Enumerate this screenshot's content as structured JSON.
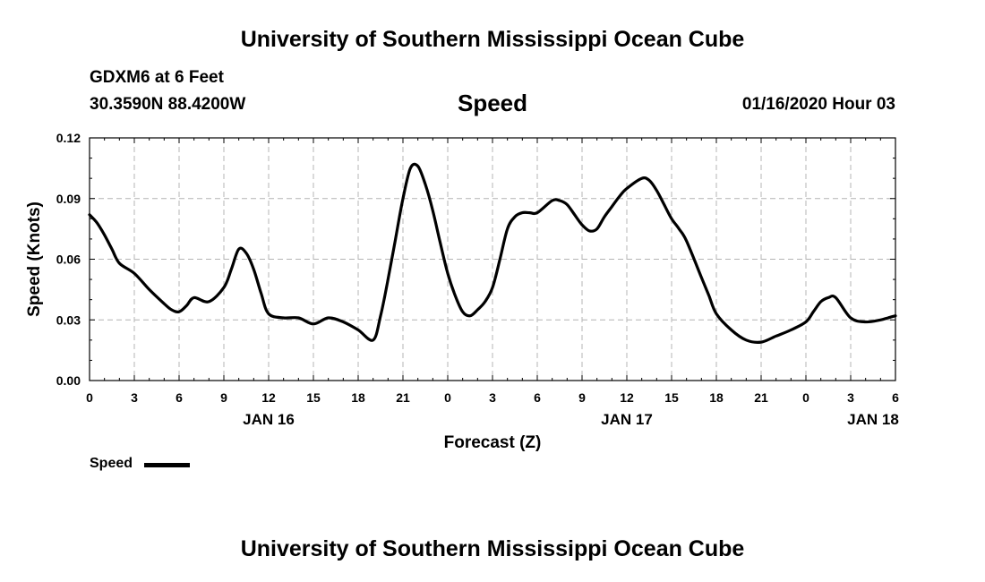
{
  "header": {
    "title": "University of Southern Mississippi Ocean Cube",
    "station": "GDXM6 at 6 Feet",
    "coords": "30.3590N 88.4200W",
    "chart_title": "Speed",
    "datetime": "01/16/2020 Hour 03"
  },
  "footer": {
    "title": "University of Southern Mississippi Ocean Cube"
  },
  "legend": {
    "label": "Speed"
  },
  "colors": {
    "line": "#000000",
    "grid": "#b4b4b4",
    "background": "#ffffff"
  },
  "chart_data": {
    "type": "line",
    "title": "Speed",
    "xlabel": "Forecast (Z)",
    "ylabel": "Speed (Knots)",
    "xlim": [
      0,
      54
    ],
    "ylim": [
      0,
      0.12
    ],
    "yticks": [
      0,
      0.03,
      0.06,
      0.09,
      0.12
    ],
    "ytick_labels": [
      "0.00",
      "0.03",
      "0.06",
      "0.09",
      "0.12"
    ],
    "xticks": [
      0,
      3,
      6,
      9,
      12,
      15,
      18,
      21,
      24,
      27,
      30,
      33,
      36,
      39,
      42,
      45,
      48,
      51,
      54
    ],
    "xtick_labels": [
      "0",
      "3",
      "6",
      "9",
      "12",
      "15",
      "18",
      "21",
      "0",
      "3",
      "6",
      "9",
      "12",
      "15",
      "18",
      "21",
      "0",
      "3",
      "6"
    ],
    "date_labels": [
      {
        "x": 12,
        "label": "JAN 16"
      },
      {
        "x": 36,
        "label": "JAN 17"
      },
      {
        "x": 52.5,
        "label": "JAN 18"
      }
    ],
    "grid": true,
    "series": [
      {
        "name": "Speed",
        "x": [
          0,
          0.5,
          1,
          1.5,
          2,
          3,
          4,
          5,
          5.5,
          6,
          6.5,
          7,
          8,
          9,
          9.5,
          10,
          10.5,
          11,
          11.5,
          12,
          13,
          14,
          15,
          16,
          17,
          18,
          19,
          19.5,
          20,
          20.5,
          21,
          21.5,
          22,
          22.5,
          23,
          23.5,
          24,
          24.5,
          25,
          25.5,
          26,
          26.5,
          27,
          27.5,
          28,
          28.5,
          29,
          29.5,
          30,
          31,
          31.5,
          32,
          32.5,
          33,
          33.5,
          34,
          34.5,
          35,
          35.5,
          36,
          37,
          37.5,
          38,
          38.5,
          39,
          39.5,
          40,
          41,
          41.5,
          42,
          43,
          44,
          45,
          46,
          47,
          48,
          48.5,
          49,
          49.5,
          50,
          51,
          52,
          53,
          53.5,
          54
        ],
        "values": [
          0.082,
          0.078,
          0.072,
          0.065,
          0.058,
          0.053,
          0.045,
          0.038,
          0.035,
          0.034,
          0.037,
          0.041,
          0.039,
          0.046,
          0.055,
          0.065,
          0.063,
          0.055,
          0.043,
          0.033,
          0.031,
          0.031,
          0.028,
          0.031,
          0.029,
          0.025,
          0.02,
          0.032,
          0.05,
          0.07,
          0.09,
          0.105,
          0.106,
          0.097,
          0.084,
          0.068,
          0.053,
          0.042,
          0.034,
          0.032,
          0.035,
          0.039,
          0.046,
          0.06,
          0.075,
          0.081,
          0.083,
          0.083,
          0.083,
          0.089,
          0.089,
          0.087,
          0.082,
          0.077,
          0.074,
          0.075,
          0.081,
          0.086,
          0.091,
          0.095,
          0.1,
          0.099,
          0.094,
          0.087,
          0.08,
          0.075,
          0.069,
          0.051,
          0.042,
          0.033,
          0.025,
          0.02,
          0.019,
          0.022,
          0.025,
          0.029,
          0.034,
          0.039,
          0.041,
          0.041,
          0.031,
          0.029,
          0.03,
          0.031,
          0.032
        ]
      }
    ]
  }
}
